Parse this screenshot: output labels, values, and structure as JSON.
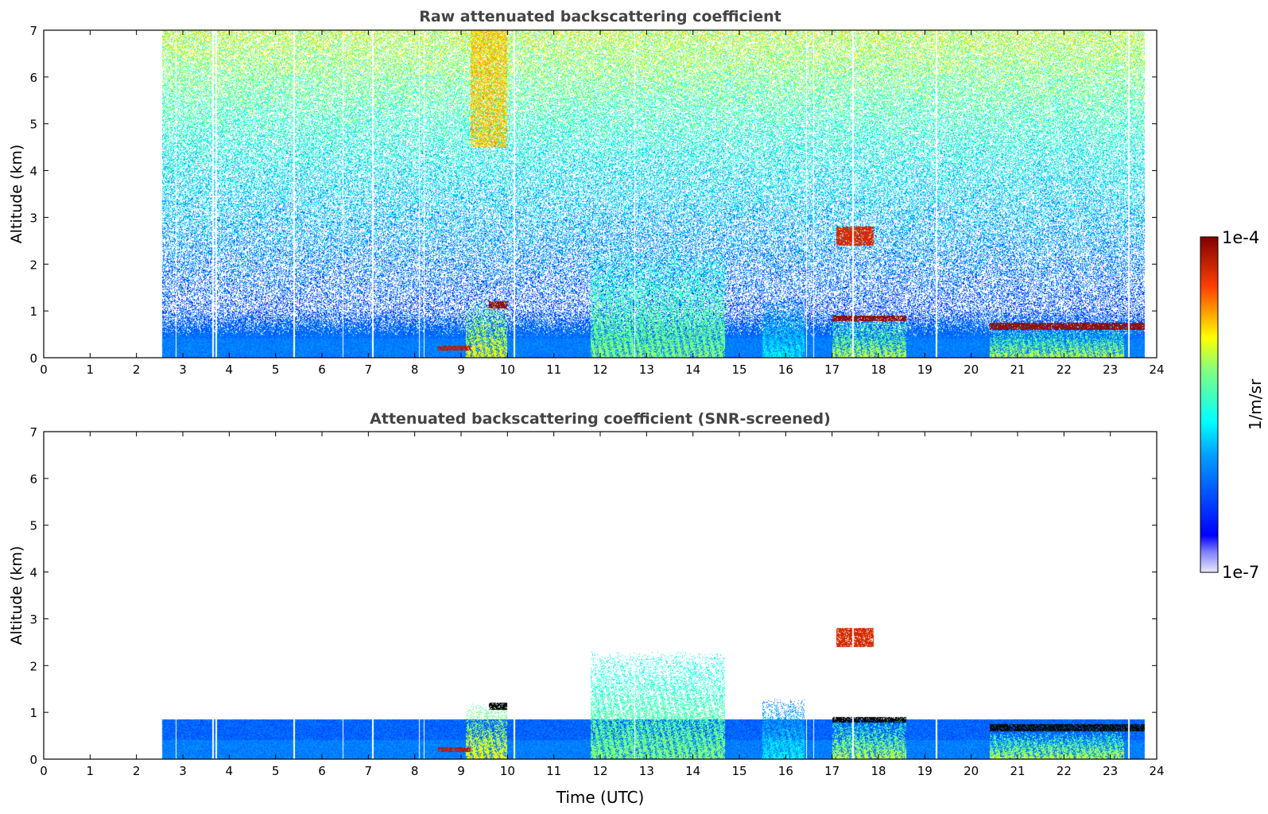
{
  "chart_data": [
    {
      "type": "heatmap",
      "title": "Raw attenuated backscattering coefficient",
      "xlabel": "",
      "ylabel": "Altitude (km)",
      "xlim": [
        0,
        24
      ],
      "ylim": [
        0,
        7
      ],
      "xticks": [
        0,
        1,
        2,
        3,
        4,
        5,
        6,
        7,
        8,
        9,
        10,
        11,
        12,
        13,
        14,
        15,
        16,
        17,
        18,
        19,
        20,
        21,
        22,
        23,
        24
      ],
      "yticks": [
        0,
        1,
        2,
        3,
        4,
        5,
        6,
        7
      ],
      "data_start_hour": 2.55,
      "data_end_hour": 23.75,
      "screened": false,
      "features": [
        {
          "kind": "boundary_layer",
          "x": [
            2.55,
            23.75
          ],
          "top_km": 0.45,
          "level": 0.3
        },
        {
          "kind": "aerosol_plume",
          "x": [
            9.1,
            10.0
          ],
          "y": [
            0,
            1.2
          ],
          "level": 0.7
        },
        {
          "kind": "cloud_base",
          "x": [
            9.6,
            10.0
          ],
          "y": [
            1.05,
            1.2
          ],
          "level": 0.97
        },
        {
          "kind": "cloud_base",
          "x": [
            8.5,
            9.2
          ],
          "y": [
            0.15,
            0.25
          ],
          "level": 0.93
        },
        {
          "kind": "aerosol_plume",
          "x": [
            11.8,
            14.7
          ],
          "y": [
            0,
            2.3
          ],
          "level": 0.6
        },
        {
          "kind": "aerosol_plume",
          "x": [
            15.5,
            16.4
          ],
          "y": [
            0,
            1.3
          ],
          "level": 0.45
        },
        {
          "kind": "cloud_layer",
          "x": [
            17.0,
            18.6
          ],
          "y": [
            0.78,
            0.9
          ],
          "level": 0.97
        },
        {
          "kind": "aerosol_plume",
          "x": [
            17.0,
            18.6
          ],
          "y": [
            0,
            0.85
          ],
          "level": 0.65
        },
        {
          "kind": "cloud_fragment",
          "x": [
            17.1,
            17.9
          ],
          "y": [
            2.4,
            2.8
          ],
          "level": 0.9
        },
        {
          "kind": "cloud_layer",
          "x": [
            20.4,
            23.75
          ],
          "y": [
            0.6,
            0.75
          ],
          "level": 0.97
        },
        {
          "kind": "aerosol_plume",
          "x": [
            20.4,
            23.3
          ],
          "y": [
            0,
            0.6
          ],
          "level": 0.65
        }
      ]
    },
    {
      "type": "heatmap",
      "title": "Attenuated backscattering coefficient (SNR-screened)",
      "xlabel": "Time (UTC)",
      "ylabel": "Altitude (km)",
      "xlim": [
        0,
        24
      ],
      "ylim": [
        0,
        7
      ],
      "xticks": [
        0,
        1,
        2,
        3,
        4,
        5,
        6,
        7,
        8,
        9,
        10,
        11,
        12,
        13,
        14,
        15,
        16,
        17,
        18,
        19,
        20,
        21,
        22,
        23,
        24
      ],
      "yticks": [
        0,
        1,
        2,
        3,
        4,
        5,
        6,
        7
      ],
      "data_start_hour": 2.55,
      "data_end_hour": 23.75,
      "screened": true
    }
  ],
  "colorbar": {
    "label": "1/m/sr",
    "max_label": "1e-4",
    "min_label": "1e-7",
    "colormap": "jet"
  }
}
